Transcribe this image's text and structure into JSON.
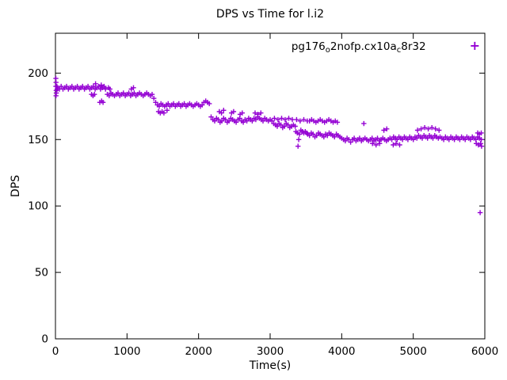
{
  "legend": {
    "part1": "pg176",
    "sub1": "o",
    "part2": "2nofp.cx10a",
    "sub2": "c",
    "part3": "8r32"
  },
  "chart_data": {
    "type": "scatter",
    "title": "DPS vs Time for l.i2",
    "xlabel": "Time(s)",
    "ylabel": "DPS",
    "xlim": [
      0,
      6000
    ],
    "ylim": [
      0,
      230
    ],
    "xticks": [
      0,
      1000,
      2000,
      3000,
      4000,
      5000,
      6000
    ],
    "yticks": [
      0,
      50,
      100,
      150,
      200
    ],
    "grid": false,
    "legend_position": "top-right",
    "series": [
      {
        "name": "pg176o2nofp.cx10ac8r32",
        "marker": "plus",
        "color": "#9400D3",
        "points": [
          [
            5,
            196
          ],
          [
            8,
            193
          ],
          [
            5,
            190
          ],
          [
            10,
            187
          ],
          [
            12,
            185
          ],
          [
            8,
            183
          ],
          [
            20,
            190
          ],
          [
            25,
            188
          ],
          [
            30,
            189
          ],
          [
            55,
            188
          ],
          [
            80,
            190
          ],
          [
            105,
            188
          ],
          [
            130,
            189
          ],
          [
            155,
            190
          ],
          [
            180,
            188
          ],
          [
            205,
            189
          ],
          [
            230,
            190
          ],
          [
            255,
            188
          ],
          [
            280,
            189
          ],
          [
            305,
            190
          ],
          [
            330,
            188
          ],
          [
            355,
            189
          ],
          [
            380,
            190
          ],
          [
            405,
            188
          ],
          [
            430,
            189
          ],
          [
            455,
            190
          ],
          [
            480,
            188
          ],
          [
            505,
            189
          ],
          [
            530,
            190
          ],
          [
            555,
            188
          ],
          [
            580,
            189
          ],
          [
            605,
            190
          ],
          [
            630,
            188
          ],
          [
            655,
            189
          ],
          [
            680,
            190
          ],
          [
            700,
            188
          ],
          [
            560,
            192
          ],
          [
            640,
            191
          ],
          [
            505,
            184
          ],
          [
            525,
            183
          ],
          [
            545,
            184
          ],
          [
            620,
            178
          ],
          [
            645,
            179
          ],
          [
            665,
            178
          ],
          [
            725,
            184
          ],
          [
            750,
            183
          ],
          [
            775,
            185
          ],
          [
            800,
            184
          ],
          [
            825,
            183
          ],
          [
            850,
            184
          ],
          [
            875,
            185
          ],
          [
            900,
            183
          ],
          [
            925,
            184
          ],
          [
            950,
            185
          ],
          [
            975,
            183
          ],
          [
            1000,
            184
          ],
          [
            1025,
            185
          ],
          [
            1050,
            183
          ],
          [
            1075,
            184
          ],
          [
            1100,
            185
          ],
          [
            1125,
            183
          ],
          [
            1150,
            184
          ],
          [
            1175,
            185
          ],
          [
            1200,
            184
          ],
          [
            1225,
            183
          ],
          [
            1250,
            184
          ],
          [
            1275,
            185
          ],
          [
            1300,
            184
          ],
          [
            1325,
            183
          ],
          [
            1350,
            184
          ],
          [
            740,
            189
          ],
          [
            760,
            188
          ],
          [
            1060,
            188
          ],
          [
            1090,
            189
          ],
          [
            1375,
            181
          ],
          [
            1400,
            178
          ],
          [
            1425,
            176
          ],
          [
            1450,
            175
          ],
          [
            1475,
            177
          ],
          [
            1500,
            176
          ],
          [
            1525,
            175
          ],
          [
            1550,
            176
          ],
          [
            1575,
            177
          ],
          [
            1600,
            175
          ],
          [
            1625,
            176
          ],
          [
            1650,
            177
          ],
          [
            1675,
            175
          ],
          [
            1700,
            176
          ],
          [
            1725,
            177
          ],
          [
            1750,
            175
          ],
          [
            1775,
            176
          ],
          [
            1800,
            177
          ],
          [
            1825,
            175
          ],
          [
            1850,
            176
          ],
          [
            1875,
            177
          ],
          [
            1900,
            176
          ],
          [
            1925,
            175
          ],
          [
            1950,
            176
          ],
          [
            1975,
            177
          ],
          [
            2000,
            176
          ],
          [
            2025,
            175
          ],
          [
            2050,
            176
          ],
          [
            1440,
            171
          ],
          [
            1465,
            170
          ],
          [
            1490,
            171
          ],
          [
            1515,
            170
          ],
          [
            1560,
            172
          ],
          [
            2075,
            178
          ],
          [
            2100,
            179
          ],
          [
            2125,
            178
          ],
          [
            2150,
            177
          ],
          [
            2175,
            167
          ],
          [
            2200,
            165
          ],
          [
            2225,
            164
          ],
          [
            2250,
            166
          ],
          [
            2275,
            165
          ],
          [
            2300,
            163
          ],
          [
            2325,
            164
          ],
          [
            2350,
            166
          ],
          [
            2375,
            165
          ],
          [
            2400,
            163
          ],
          [
            2425,
            164
          ],
          [
            2450,
            166
          ],
          [
            2475,
            165
          ],
          [
            2500,
            164
          ],
          [
            2525,
            163
          ],
          [
            2550,
            165
          ],
          [
            2575,
            166
          ],
          [
            2600,
            164
          ],
          [
            2625,
            163
          ],
          [
            2650,
            165
          ],
          [
            2675,
            164
          ],
          [
            2700,
            166
          ],
          [
            2725,
            165
          ],
          [
            2750,
            164
          ],
          [
            2290,
            171
          ],
          [
            2320,
            170
          ],
          [
            2350,
            172
          ],
          [
            2460,
            170
          ],
          [
            2490,
            171
          ],
          [
            2580,
            169
          ],
          [
            2610,
            170
          ],
          [
            2775,
            166
          ],
          [
            2800,
            165
          ],
          [
            2825,
            167
          ],
          [
            2850,
            166
          ],
          [
            2875,
            165
          ],
          [
            2900,
            164
          ],
          [
            2925,
            166
          ],
          [
            2950,
            165
          ],
          [
            2975,
            164
          ],
          [
            3000,
            165
          ],
          [
            3025,
            164
          ],
          [
            2790,
            170
          ],
          [
            2830,
            169
          ],
          [
            2870,
            170
          ],
          [
            3050,
            162
          ],
          [
            3075,
            161
          ],
          [
            3100,
            160
          ],
          [
            3125,
            162
          ],
          [
            3150,
            161
          ],
          [
            3175,
            159
          ],
          [
            3200,
            160
          ],
          [
            3225,
            162
          ],
          [
            3250,
            161
          ],
          [
            3275,
            159
          ],
          [
            3300,
            160
          ],
          [
            3325,
            161
          ],
          [
            3350,
            160
          ],
          [
            3060,
            166
          ],
          [
            3110,
            165
          ],
          [
            3160,
            166
          ],
          [
            3210,
            165
          ],
          [
            3260,
            166
          ],
          [
            3310,
            165
          ],
          [
            3360,
            156
          ],
          [
            3380,
            155
          ],
          [
            3390,
            145
          ],
          [
            3400,
            150
          ],
          [
            3410,
            154
          ],
          [
            3430,
            157
          ],
          [
            3450,
            156
          ],
          [
            3470,
            155
          ],
          [
            3490,
            156
          ],
          [
            3510,
            155
          ],
          [
            3370,
            165
          ],
          [
            3420,
            164
          ],
          [
            3470,
            165
          ],
          [
            3520,
            164
          ],
          [
            3550,
            164
          ],
          [
            3580,
            165
          ],
          [
            3610,
            164
          ],
          [
            3640,
            163
          ],
          [
            3670,
            164
          ],
          [
            3700,
            165
          ],
          [
            3730,
            164
          ],
          [
            3760,
            163
          ],
          [
            3790,
            164
          ],
          [
            3820,
            165
          ],
          [
            3850,
            164
          ],
          [
            3880,
            163
          ],
          [
            3910,
            164
          ],
          [
            3940,
            163
          ],
          [
            3525,
            154
          ],
          [
            3550,
            153
          ],
          [
            3575,
            155
          ],
          [
            3600,
            154
          ],
          [
            3625,
            152
          ],
          [
            3650,
            153
          ],
          [
            3675,
            155
          ],
          [
            3700,
            154
          ],
          [
            3725,
            153
          ],
          [
            3750,
            152
          ],
          [
            3775,
            154
          ],
          [
            3800,
            153
          ],
          [
            3825,
            155
          ],
          [
            3850,
            154
          ],
          [
            3875,
            153
          ],
          [
            3900,
            152
          ],
          [
            3925,
            154
          ],
          [
            3950,
            153
          ],
          [
            3975,
            152
          ],
          [
            4000,
            151
          ],
          [
            4025,
            150
          ],
          [
            4050,
            149
          ],
          [
            4075,
            151
          ],
          [
            4100,
            150
          ],
          [
            4125,
            148
          ],
          [
            4150,
            150
          ],
          [
            4175,
            151
          ],
          [
            4200,
            149
          ],
          [
            4225,
            150
          ],
          [
            4250,
            151
          ],
          [
            4275,
            149
          ],
          [
            4300,
            150
          ],
          [
            4325,
            151
          ],
          [
            4350,
            150
          ],
          [
            4375,
            149
          ],
          [
            4400,
            150
          ],
          [
            4425,
            151
          ],
          [
            4450,
            149
          ],
          [
            4475,
            150
          ],
          [
            4500,
            151
          ],
          [
            4525,
            149
          ],
          [
            4550,
            150
          ],
          [
            4575,
            151
          ],
          [
            4600,
            150
          ],
          [
            4625,
            149
          ],
          [
            4650,
            150
          ],
          [
            4675,
            151
          ],
          [
            4700,
            150
          ],
          [
            4310,
            162
          ],
          [
            4590,
            157
          ],
          [
            4630,
            158
          ],
          [
            4430,
            147
          ],
          [
            4480,
            146
          ],
          [
            4530,
            147
          ],
          [
            4720,
            146
          ],
          [
            4760,
            147
          ],
          [
            4810,
            146
          ],
          [
            4725,
            152
          ],
          [
            4750,
            151
          ],
          [
            4775,
            150
          ],
          [
            4800,
            152
          ],
          [
            4825,
            151
          ],
          [
            4850,
            150
          ],
          [
            4875,
            152
          ],
          [
            4900,
            151
          ],
          [
            4925,
            150
          ],
          [
            4950,
            152
          ],
          [
            4975,
            151
          ],
          [
            5000,
            150
          ],
          [
            5025,
            152
          ],
          [
            5050,
            151
          ],
          [
            5075,
            153
          ],
          [
            5100,
            152
          ],
          [
            5125,
            151
          ],
          [
            5150,
            153
          ],
          [
            5175,
            152
          ],
          [
            5200,
            151
          ],
          [
            5225,
            153
          ],
          [
            5250,
            152
          ],
          [
            5275,
            151
          ],
          [
            5300,
            153
          ],
          [
            5325,
            152
          ],
          [
            5350,
            151
          ],
          [
            5375,
            152
          ],
          [
            5400,
            151
          ],
          [
            5425,
            150
          ],
          [
            5450,
            152
          ],
          [
            5475,
            151
          ],
          [
            5500,
            150
          ],
          [
            5525,
            152
          ],
          [
            5550,
            151
          ],
          [
            5575,
            150
          ],
          [
            5600,
            152
          ],
          [
            5625,
            151
          ],
          [
            5650,
            150
          ],
          [
            5675,
            152
          ],
          [
            5700,
            151
          ],
          [
            5725,
            150
          ],
          [
            5750,
            152
          ],
          [
            5775,
            151
          ],
          [
            5800,
            150
          ],
          [
            5825,
            152
          ],
          [
            5850,
            151
          ],
          [
            5875,
            150
          ],
          [
            5900,
            152
          ],
          [
            5925,
            151
          ],
          [
            5950,
            150
          ],
          [
            5060,
            157
          ],
          [
            5110,
            158
          ],
          [
            5160,
            159
          ],
          [
            5210,
            158
          ],
          [
            5260,
            159
          ],
          [
            5310,
            158
          ],
          [
            5360,
            157
          ],
          [
            5900,
            155
          ],
          [
            5925,
            154
          ],
          [
            5950,
            155
          ],
          [
            5880,
            147
          ],
          [
            5910,
            146
          ],
          [
            5940,
            147
          ],
          [
            5955,
            145
          ],
          [
            5935,
            95
          ]
        ]
      }
    ]
  }
}
